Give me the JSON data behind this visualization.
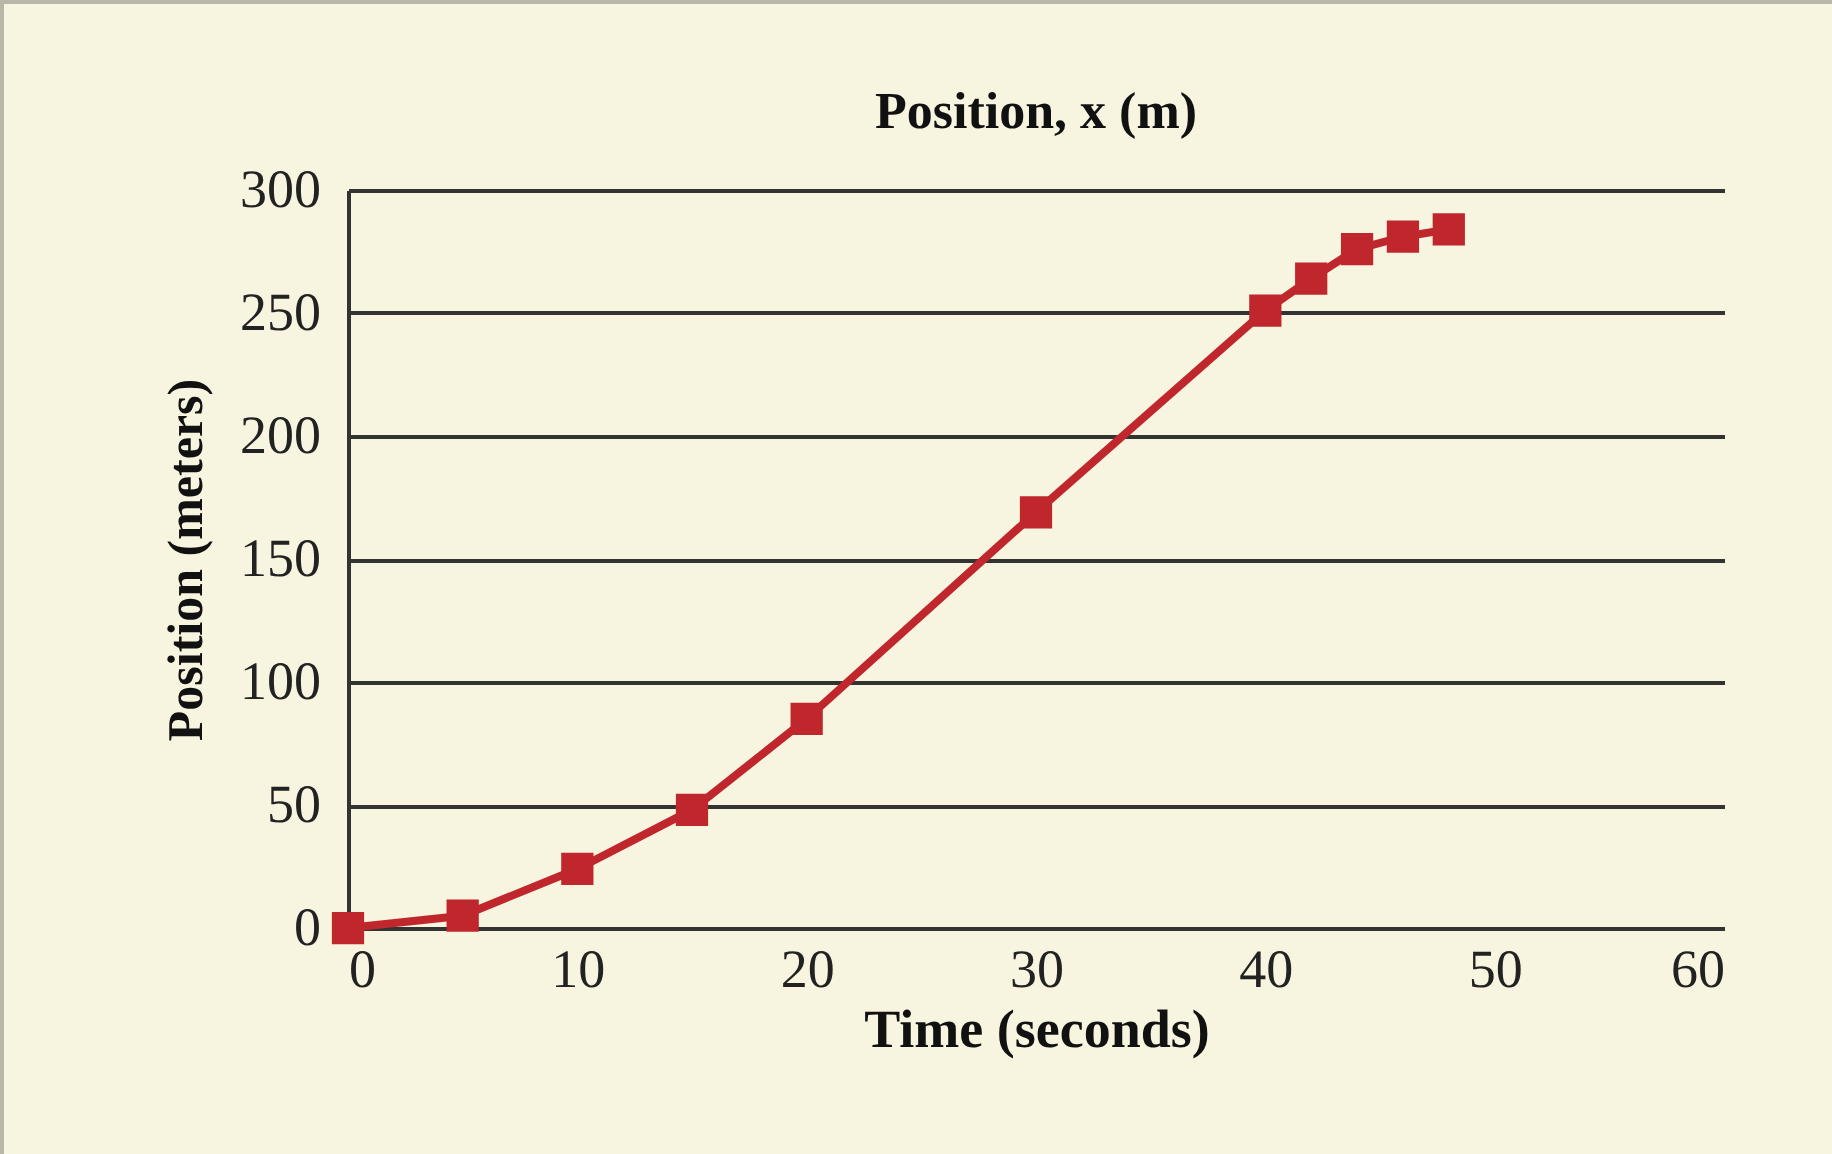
{
  "chart_data": {
    "type": "line",
    "title": "Position, x (m)",
    "xlabel": "Time (seconds)",
    "ylabel": "Position (meters)",
    "x": [
      0,
      5,
      10,
      15,
      20,
      30,
      40,
      42,
      44,
      46,
      48
    ],
    "series": [
      {
        "color": "#c0272d",
        "values": [
          0,
          5,
          24,
          48,
          85,
          169,
          251,
          264,
          276,
          281,
          284
        ]
      }
    ],
    "xlim": [
      0,
      60
    ],
    "xticks": [
      0,
      10,
      20,
      30,
      40,
      50,
      60
    ],
    "ylim": [
      0,
      300
    ],
    "yticks": [
      0,
      50,
      100,
      150,
      200,
      250,
      300
    ],
    "grid": "y",
    "marker": "square",
    "line_style": "solid"
  }
}
